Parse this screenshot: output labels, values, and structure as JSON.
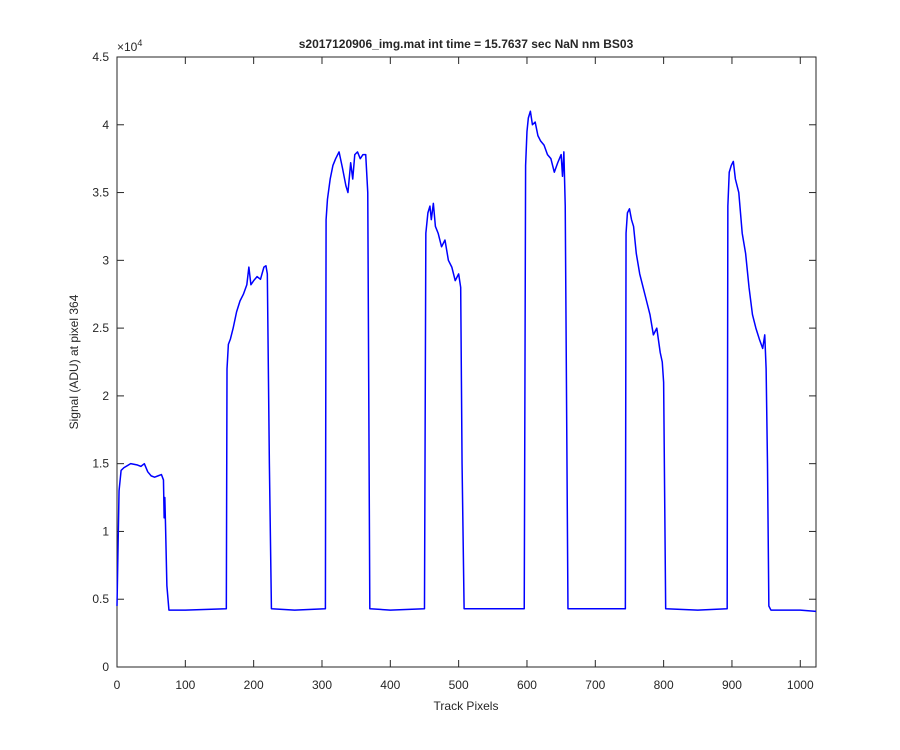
{
  "chart_data": {
    "type": "line",
    "title": "s2017120906_img.mat int time = 15.7637 sec  NaN nm BS03",
    "x_label": "Track Pixels",
    "y_label": "Signal (ADU) at pixel 364",
    "y_multiplier": {
      "base": "×10",
      "exponent": "4"
    },
    "x": [
      0,
      3,
      6,
      10,
      20,
      30,
      35,
      40,
      45,
      50,
      55,
      60,
      65,
      68,
      69,
      70,
      71,
      73,
      76,
      100,
      160,
      161,
      163,
      166,
      170,
      175,
      180,
      185,
      190,
      193,
      196,
      200,
      205,
      210,
      215,
      218,
      220,
      223,
      226,
      260,
      305,
      306,
      308,
      312,
      316,
      320,
      325,
      330,
      335,
      338,
      342,
      345,
      348,
      352,
      356,
      360,
      364,
      367,
      370,
      400,
      450,
      452,
      455,
      458,
      460,
      463,
      466,
      470,
      475,
      480,
      485,
      490,
      495,
      500,
      503,
      505,
      508,
      550,
      596,
      598,
      600,
      602,
      605,
      608,
      612,
      616,
      620,
      625,
      630,
      635,
      640,
      645,
      650,
      652,
      654,
      656,
      660,
      700,
      744,
      745,
      747,
      750,
      753,
      756,
      760,
      765,
      770,
      775,
      780,
      785,
      790,
      795,
      798,
      800,
      803,
      850,
      893,
      894,
      896,
      899,
      902,
      905,
      910,
      915,
      920,
      925,
      930,
      935,
      940,
      945,
      948,
      950,
      952,
      954,
      957,
      1000,
      1023
    ],
    "series": [
      {
        "name": "signal",
        "color": "#0000ff",
        "values": [
          0.45,
          1.3,
          1.45,
          1.47,
          1.5,
          1.49,
          1.48,
          1.5,
          1.44,
          1.41,
          1.4,
          1.41,
          1.42,
          1.38,
          1.1,
          1.25,
          1.05,
          0.6,
          0.42,
          0.42,
          0.43,
          2.2,
          2.38,
          2.42,
          2.5,
          2.62,
          2.7,
          2.75,
          2.82,
          2.95,
          2.82,
          2.85,
          2.88,
          2.86,
          2.95,
          2.96,
          2.9,
          1.5,
          0.43,
          0.42,
          0.43,
          3.3,
          3.45,
          3.6,
          3.7,
          3.75,
          3.8,
          3.68,
          3.55,
          3.5,
          3.72,
          3.6,
          3.78,
          3.8,
          3.75,
          3.78,
          3.78,
          3.5,
          0.43,
          0.42,
          0.43,
          3.2,
          3.35,
          3.4,
          3.3,
          3.42,
          3.25,
          3.2,
          3.1,
          3.15,
          3.0,
          2.95,
          2.85,
          2.9,
          2.8,
          1.5,
          0.43,
          0.43,
          0.43,
          3.7,
          3.95,
          4.05,
          4.1,
          4.0,
          4.02,
          3.92,
          3.88,
          3.85,
          3.78,
          3.75,
          3.65,
          3.72,
          3.78,
          3.62,
          3.8,
          3.4,
          0.43,
          0.43,
          0.43,
          3.2,
          3.35,
          3.38,
          3.3,
          3.25,
          3.05,
          2.9,
          2.8,
          2.7,
          2.6,
          2.45,
          2.5,
          2.32,
          2.25,
          2.1,
          0.43,
          0.42,
          0.43,
          3.4,
          3.65,
          3.7,
          3.73,
          3.6,
          3.5,
          3.2,
          3.05,
          2.8,
          2.6,
          2.5,
          2.42,
          2.35,
          2.45,
          2.2,
          1.5,
          0.45,
          0.42,
          0.42,
          0.41
        ]
      }
    ],
    "xlim": [
      0,
      1023
    ],
    "ylim": [
      0,
      4.5
    ],
    "xticks": [
      0,
      100,
      200,
      300,
      400,
      500,
      600,
      700,
      800,
      900,
      1000
    ],
    "yticks": [
      0,
      0.5,
      1,
      1.5,
      2,
      2.5,
      3,
      3.5,
      4,
      4.5
    ],
    "grid": false
  }
}
